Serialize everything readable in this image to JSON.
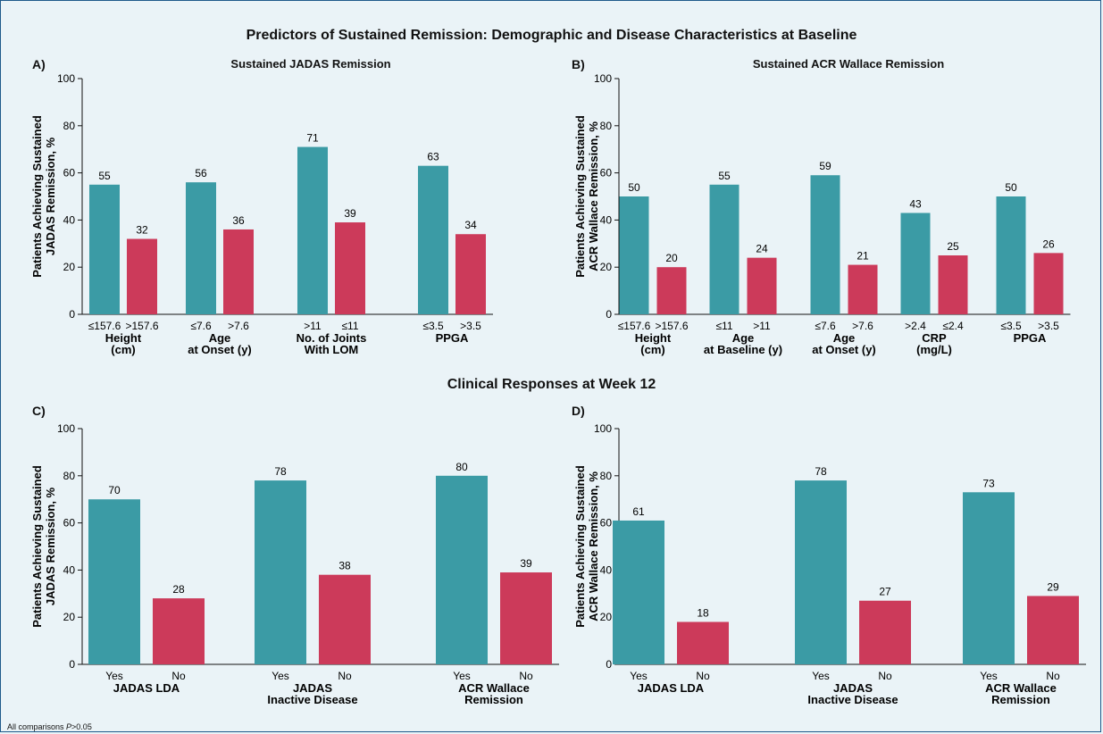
{
  "main_title": "Predictors of Sustained Remission: Demographic and Disease Characteristics at Baseline",
  "section_title": "Clinical Responses at Week 12",
  "footnote_prefix": "All comparisons ",
  "footnote_italic": "P",
  "footnote_suffix": ">0.05",
  "colors": {
    "teal": "#3b9ba5",
    "red": "#cc3a5a",
    "background": "#eaf3f7",
    "border": "#1f5a8a"
  },
  "chart_data": [
    {
      "type": "bar",
      "panel": "A)",
      "title": "Sustained JADAS Remission",
      "ylabel": [
        "Patients Achieving Sustained",
        "JADAS Remission, %"
      ],
      "ylim": [
        0,
        100
      ],
      "yticks": [
        0,
        20,
        40,
        60,
        80,
        100
      ],
      "groups": [
        {
          "label": [
            "Height",
            "(cm)"
          ],
          "bars": [
            {
              "tick": "≤157.6",
              "value": 55,
              "color": "teal"
            },
            {
              "tick": ">157.6",
              "value": 32,
              "color": "red"
            }
          ]
        },
        {
          "label": [
            "Age",
            "at Onset (y)"
          ],
          "bars": [
            {
              "tick": "≤7.6",
              "value": 56,
              "color": "teal"
            },
            {
              "tick": ">7.6",
              "value": 36,
              "color": "red"
            }
          ]
        },
        {
          "label": [
            "No. of Joints",
            "With LOM"
          ],
          "bars": [
            {
              "tick": ">11",
              "value": 71,
              "color": "teal"
            },
            {
              "tick": "≤11",
              "value": 39,
              "color": "red"
            }
          ]
        },
        {
          "label": [
            "PPGA"
          ],
          "bars": [
            {
              "tick": "≤3.5",
              "value": 63,
              "color": "teal"
            },
            {
              "tick": ">3.5",
              "value": 34,
              "color": "red"
            }
          ]
        }
      ]
    },
    {
      "type": "bar",
      "panel": "B)",
      "title": "Sustained ACR Wallace Remission",
      "ylabel": [
        "Patients Achieving Sustained",
        "ACR Wallace Remission, %"
      ],
      "ylim": [
        0,
        100
      ],
      "yticks": [
        0,
        20,
        40,
        60,
        80,
        100
      ],
      "groups": [
        {
          "label": [
            "Height",
            "(cm)"
          ],
          "bars": [
            {
              "tick": "≤157.6",
              "value": 50,
              "color": "teal"
            },
            {
              "tick": ">157.6",
              "value": 20,
              "color": "red"
            }
          ]
        },
        {
          "label": [
            "Age",
            "at Baseline (y)"
          ],
          "bars": [
            {
              "tick": "≤11",
              "value": 55,
              "color": "teal"
            },
            {
              "tick": ">11",
              "value": 24,
              "color": "red"
            }
          ]
        },
        {
          "label": [
            "Age",
            "at Onset (y)"
          ],
          "bars": [
            {
              "tick": "≤7.6",
              "value": 59,
              "color": "teal"
            },
            {
              "tick": ">7.6",
              "value": 21,
              "color": "red"
            }
          ]
        },
        {
          "label": [
            "CRP",
            "(mg/L)"
          ],
          "bars": [
            {
              "tick": ">2.4",
              "value": 43,
              "color": "teal"
            },
            {
              "tick": "≤2.4",
              "value": 25,
              "color": "red"
            }
          ]
        },
        {
          "label": [
            "PPGA"
          ],
          "bars": [
            {
              "tick": "≤3.5",
              "value": 50,
              "color": "teal"
            },
            {
              "tick": ">3.5",
              "value": 26,
              "color": "red"
            }
          ]
        }
      ]
    },
    {
      "type": "bar",
      "panel": "C)",
      "title": "",
      "ylabel": [
        "Patients Achieving Sustained",
        "JADAS Remission, %"
      ],
      "ylim": [
        0,
        100
      ],
      "yticks": [
        0,
        20,
        40,
        60,
        80,
        100
      ],
      "groups": [
        {
          "label": [
            "JADAS LDA"
          ],
          "bars": [
            {
              "tick": "Yes",
              "value": 70,
              "color": "teal"
            },
            {
              "tick": "No",
              "value": 28,
              "color": "red"
            }
          ]
        },
        {
          "label": [
            "JADAS",
            "Inactive Disease"
          ],
          "bars": [
            {
              "tick": "Yes",
              "value": 78,
              "color": "teal"
            },
            {
              "tick": "No",
              "value": 38,
              "color": "red"
            }
          ]
        },
        {
          "label": [
            "ACR Wallace",
            "Remission"
          ],
          "bars": [
            {
              "tick": "Yes",
              "value": 80,
              "color": "teal"
            },
            {
              "tick": "No",
              "value": 39,
              "color": "red"
            }
          ]
        }
      ]
    },
    {
      "type": "bar",
      "panel": "D)",
      "title": "",
      "ylabel": [
        "Patients Achieving Sustained",
        "ACR Wallace Remission, %"
      ],
      "ylim": [
        0,
        100
      ],
      "yticks": [
        0,
        20,
        40,
        60,
        80,
        100
      ],
      "groups": [
        {
          "label": [
            "JADAS LDA"
          ],
          "bars": [
            {
              "tick": "Yes",
              "value": 61,
              "color": "teal"
            },
            {
              "tick": "No",
              "value": 18,
              "color": "red"
            }
          ]
        },
        {
          "label": [
            "JADAS",
            "Inactive Disease"
          ],
          "bars": [
            {
              "tick": "Yes",
              "value": 78,
              "color": "teal"
            },
            {
              "tick": "No",
              "value": 27,
              "color": "red"
            }
          ]
        },
        {
          "label": [
            "ACR Wallace",
            "Remission"
          ],
          "bars": [
            {
              "tick": "Yes",
              "value": 73,
              "color": "teal"
            },
            {
              "tick": "No",
              "value": 29,
              "color": "red"
            }
          ]
        }
      ]
    }
  ]
}
